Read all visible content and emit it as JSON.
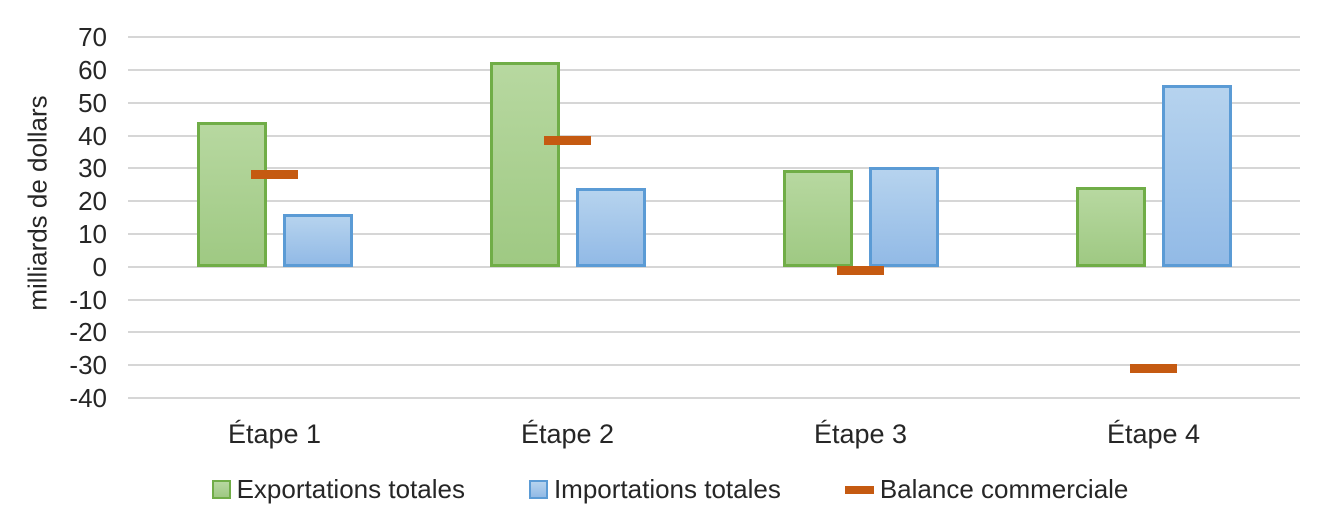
{
  "chart_data": {
    "type": "bar",
    "title": "",
    "ylabel": "milliards de dollars",
    "xlabel": "",
    "categories": [
      "Étape 1",
      "Étape 2",
      "Étape 3",
      "Étape 4"
    ],
    "series": [
      {
        "name": "Exportations totales",
        "type": "bar",
        "values": [
          44,
          62.5,
          29.4,
          24.3
        ],
        "fill_top": "#B7D8A0",
        "fill_bottom": "#9FC983",
        "border": "#70AD47"
      },
      {
        "name": "Importations totales",
        "type": "bar",
        "values": [
          16,
          24,
          30.4,
          55.3
        ],
        "fill_top": "#B6D3EE",
        "fill_bottom": "#92BAE6",
        "border": "#5B9BD5"
      },
      {
        "name": "Balance commerciale",
        "type": "dash",
        "values": [
          28,
          38.5,
          -1,
          -31
        ],
        "color": "#C55A11"
      }
    ],
    "ylim": [
      -40,
      70
    ],
    "ytick_step": 10,
    "yticks": [
      70,
      60,
      50,
      40,
      30,
      20,
      10,
      0,
      -10,
      -20,
      -30,
      -40
    ],
    "grid": true,
    "gridline_color": "#D6D6D6",
    "text_color": "#262626",
    "legend_position": "bottom"
  }
}
